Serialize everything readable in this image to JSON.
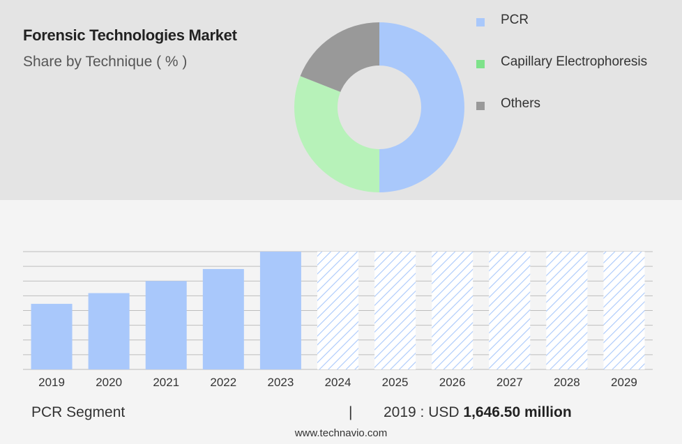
{
  "header": {
    "title": "Forensic Technologies Market",
    "subtitle": "Share by Technique ( % )"
  },
  "chart_data": [
    {
      "type": "pie",
      "variant": "donut",
      "title": "Forensic Technologies Market",
      "subtitle": "Share by Technique ( % )",
      "legend_position": "right",
      "slices": [
        {
          "name": "PCR",
          "value": 50,
          "color": "#a9c8fb"
        },
        {
          "name": "Capillary Electrophoresis",
          "value": 31,
          "color": "#b7f2b9"
        },
        {
          "name": "Others",
          "value": 19,
          "color": "#999999"
        }
      ],
      "legend_swatch_colors": [
        "#a9c8fb",
        "#7ee28a",
        "#999999"
      ]
    },
    {
      "type": "bar",
      "categories": [
        "2019",
        "2020",
        "2021",
        "2022",
        "2023",
        "2024",
        "2025",
        "2026",
        "2027",
        "2028",
        "2029"
      ],
      "values": [
        49,
        57,
        66,
        75,
        88,
        88,
        88,
        88,
        88,
        88,
        88
      ],
      "forecast_from": "2024",
      "ylim": [
        0,
        88
      ],
      "grid": true,
      "bar_color": "#a9c8fb",
      "forecast_hatch_color": "#a9c8fb"
    }
  ],
  "footer": {
    "segment_label": "PCR Segment",
    "separator": "|",
    "year_prefix": "2019 : USD ",
    "value": "1,646.50 million",
    "website": "www.technavio.com"
  }
}
